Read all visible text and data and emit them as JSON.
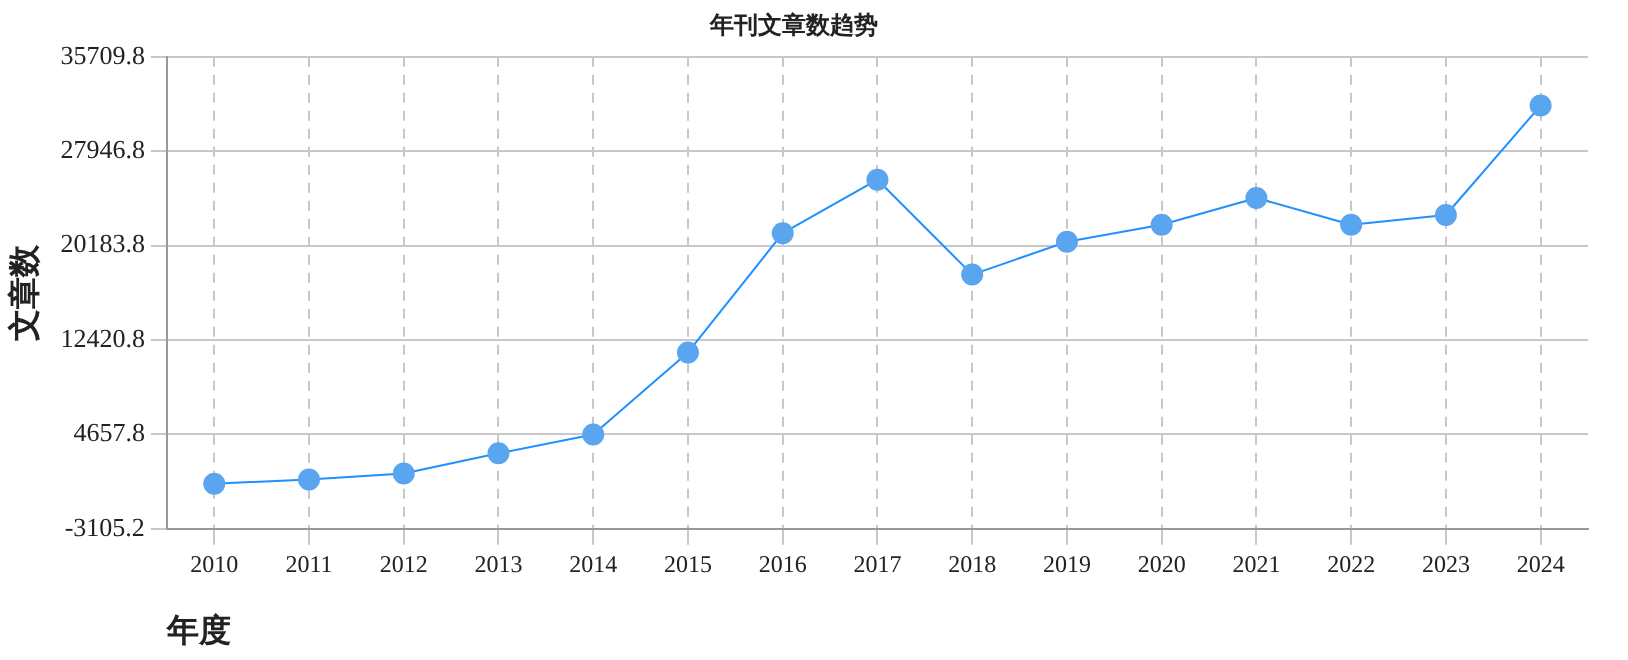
{
  "chart_data": {
    "type": "line",
    "title": "年刊文章数趋势",
    "xlabel": "年度",
    "ylabel": "文章数",
    "categories": [
      "2010",
      "2011",
      "2012",
      "2013",
      "2014",
      "2015",
      "2016",
      "2017",
      "2018",
      "2019",
      "2020",
      "2021",
      "2022",
      "2023",
      "2024"
    ],
    "series": [
      {
        "color": "#5aa5f0",
        "values": [
          600,
          950,
          1450,
          3100,
          4650,
          11400,
          21200,
          25600,
          17800,
          20500,
          21900,
          24100,
          21900,
          22700,
          31700
        ]
      }
    ],
    "ylim": [
      -3105.2,
      35709.8
    ],
    "yticks": [
      -3105.2,
      4657.8,
      12420.8,
      20183.8,
      27946.8,
      35709.8
    ],
    "grid": true,
    "legend": false,
    "marker": "circle",
    "line_style": "solid"
  }
}
